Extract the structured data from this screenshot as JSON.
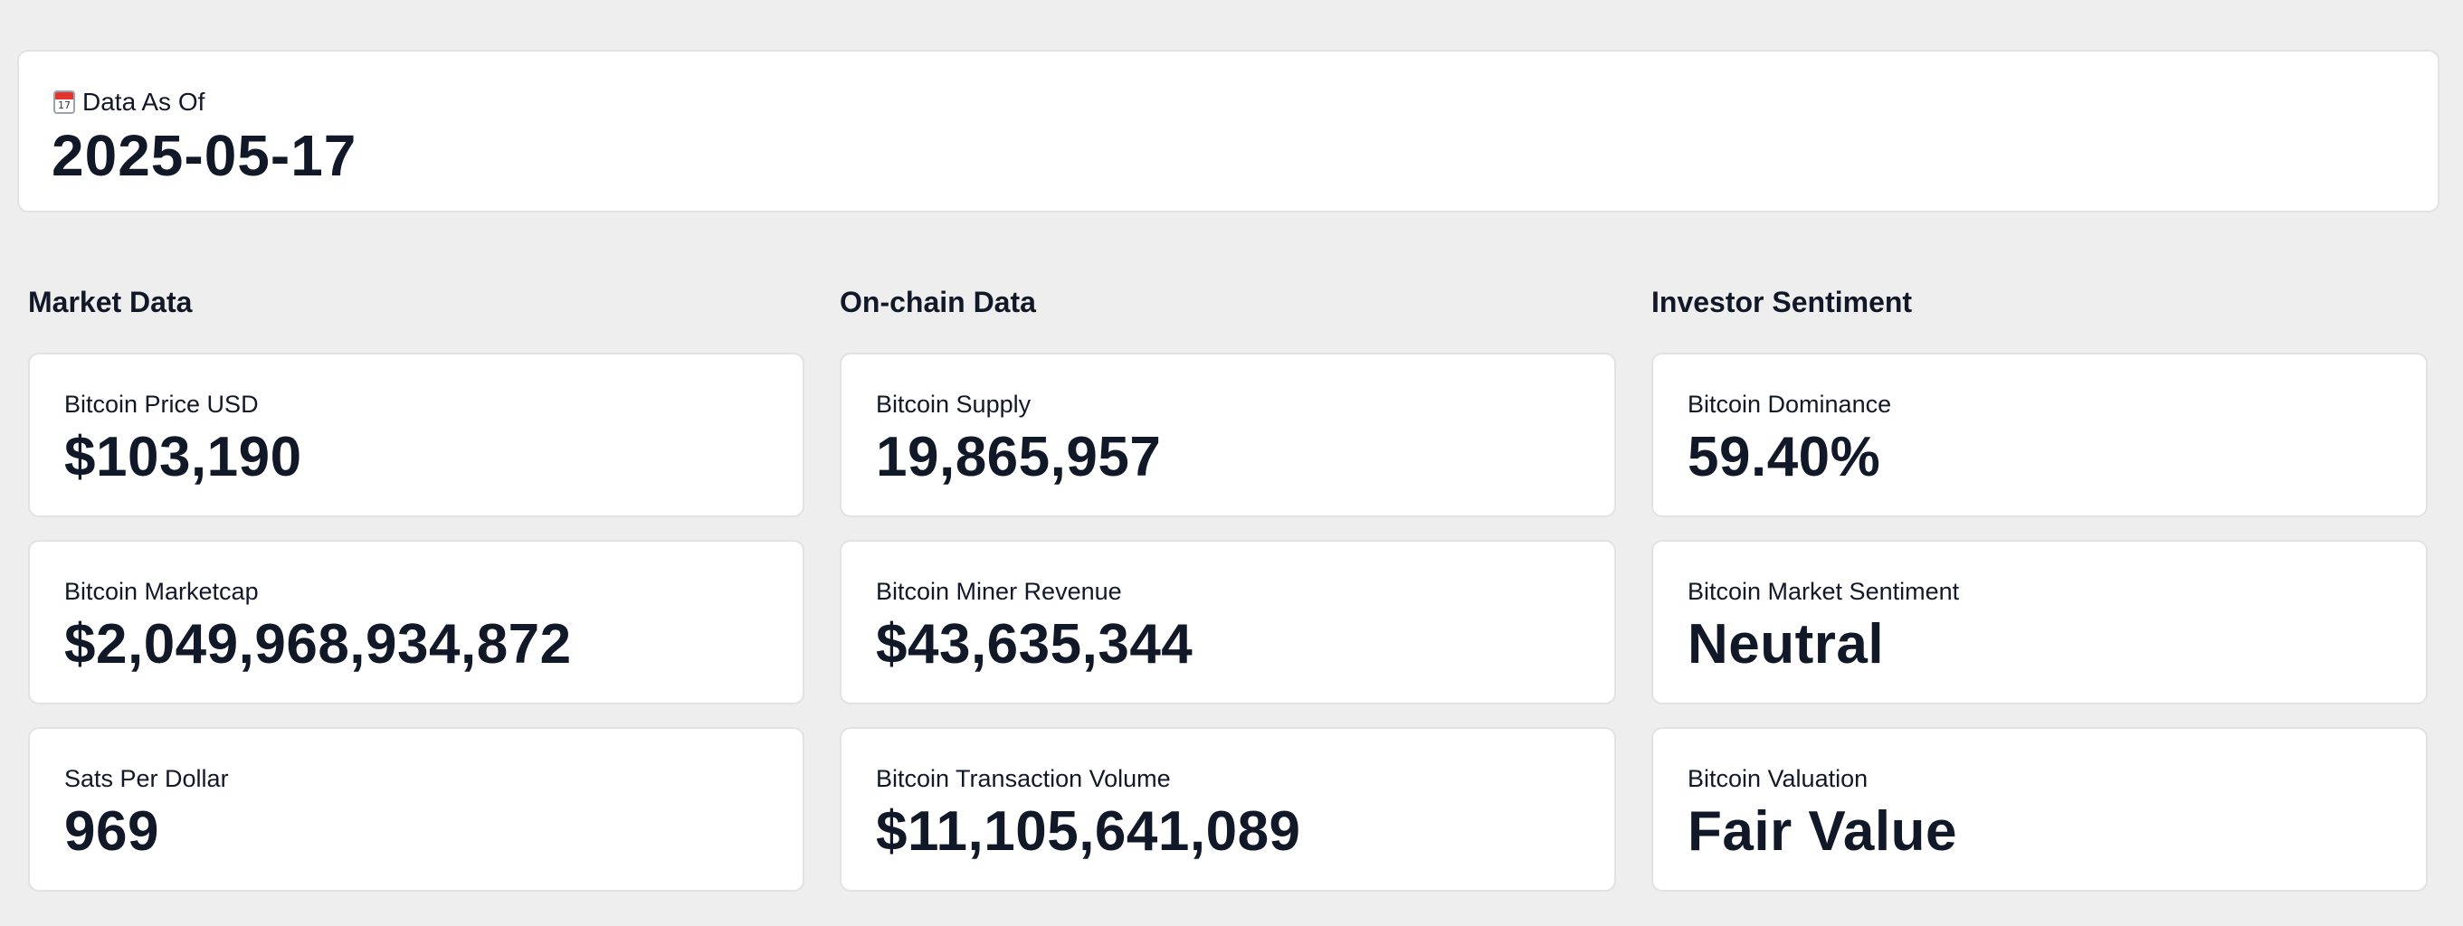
{
  "header": {
    "icon": "calendar-icon",
    "label": "Data As Of",
    "date": "2025-05-17"
  },
  "sections": [
    {
      "title": "Market Data",
      "metrics": [
        {
          "label": "Bitcoin Price USD",
          "value": "$103,190"
        },
        {
          "label": "Bitcoin Marketcap",
          "value": "$2,049,968,934,872"
        },
        {
          "label": "Sats Per Dollar",
          "value": "969"
        }
      ]
    },
    {
      "title": "On-chain Data",
      "metrics": [
        {
          "label": "Bitcoin Supply",
          "value": "19,865,957"
        },
        {
          "label": "Bitcoin Miner Revenue",
          "value": "$43,635,344"
        },
        {
          "label": "Bitcoin Transaction Volume",
          "value": "$11,105,641,089"
        }
      ]
    },
    {
      "title": "Investor Sentiment",
      "metrics": [
        {
          "label": "Bitcoin Dominance",
          "value": "59.40%"
        },
        {
          "label": "Bitcoin Market Sentiment",
          "value": "Neutral"
        },
        {
          "label": "Bitcoin Valuation",
          "value": "Fair Value"
        }
      ]
    }
  ],
  "colors": {
    "background": "#eeeeee",
    "card": "#ffffff",
    "text": "#111827"
  }
}
